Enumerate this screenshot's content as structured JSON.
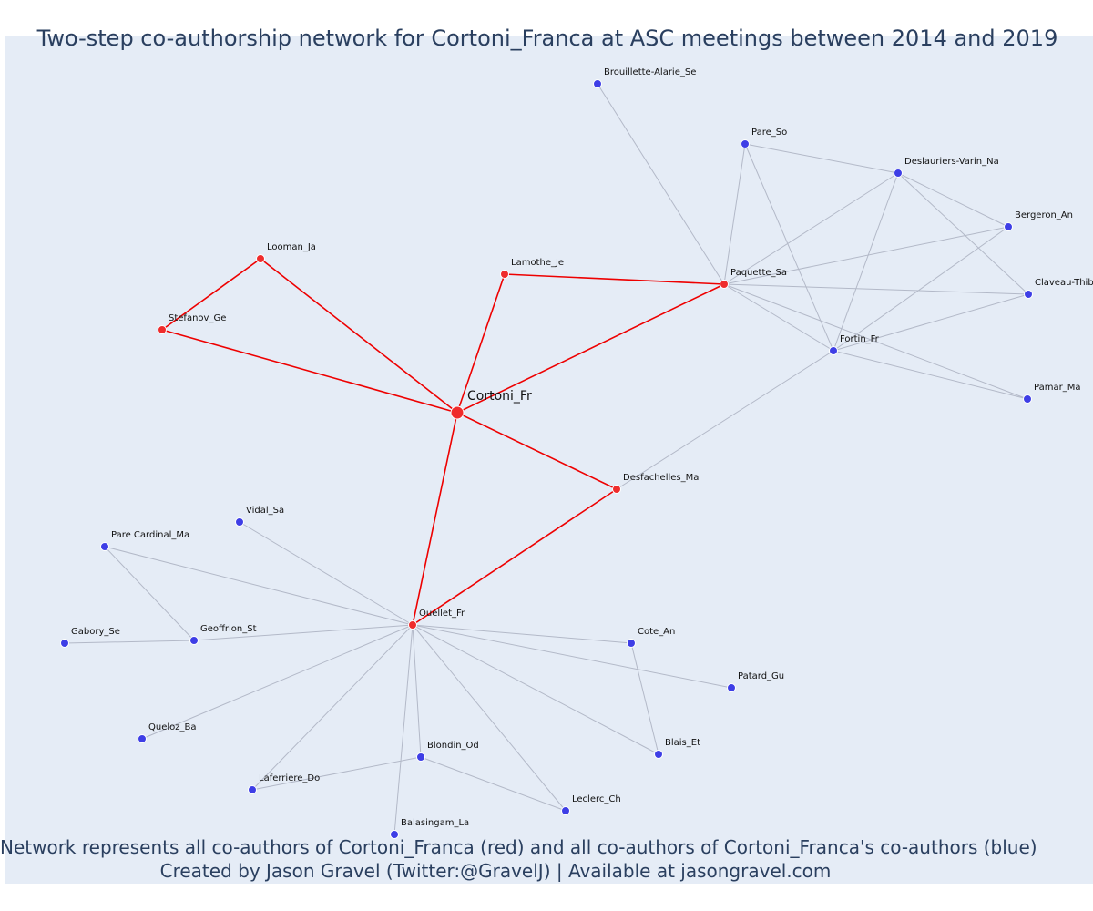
{
  "title": "Two-step co-authorship network for Cortoni_Franca at ASC meetings between 2014 and 2019",
  "captions": {
    "line1": "Network represents all co-authors of Cortoni_Franca (red) and all co-authors of Cortoni_Franca's co-authors (blue)",
    "line2": "Created by Jason Gravel (Twitter:@GravelJ) | Available at jasongravel.com"
  },
  "colors": {
    "background": "#e5ecf6",
    "red_node": "#ef2c2c",
    "blue_node": "#3e3ee6",
    "red_edge": "#ee0000",
    "grey_edge": "#b3b9c8",
    "text": "#2a3f5f"
  },
  "network": {
    "center": "Cortoni_Fr",
    "nodes": [
      {
        "id": "Cortoni_Fr",
        "group": "center"
      },
      {
        "id": "Looman_Ja",
        "group": "red"
      },
      {
        "id": "Stefanov_Ge",
        "group": "red"
      },
      {
        "id": "Lamothe_Je",
        "group": "red"
      },
      {
        "id": "Paquette_Sa",
        "group": "red"
      },
      {
        "id": "Desfachelles_Ma",
        "group": "red"
      },
      {
        "id": "Ouellet_Fr",
        "group": "red"
      },
      {
        "id": "Brouillette-Alarie_Se",
        "group": "blue"
      },
      {
        "id": "Pare_So",
        "group": "blue"
      },
      {
        "id": "Deslauriers-Varin_Na",
        "group": "blue"
      },
      {
        "id": "Bergeron_An",
        "group": "blue"
      },
      {
        "id": "Claveau-Thib",
        "group": "blue"
      },
      {
        "id": "Fortin_Fr",
        "group": "blue"
      },
      {
        "id": "Pamar_Ma",
        "group": "blue"
      },
      {
        "id": "Vidal_Sa",
        "group": "blue"
      },
      {
        "id": "Pare Cardinal_Ma",
        "group": "blue"
      },
      {
        "id": "Geoffrion_St",
        "group": "blue"
      },
      {
        "id": "Gabory_Se",
        "group": "blue"
      },
      {
        "id": "Queloz_Ba",
        "group": "blue"
      },
      {
        "id": "Laferriere_Do",
        "group": "blue"
      },
      {
        "id": "Balasingam_La",
        "group": "blue"
      },
      {
        "id": "Blondin_Od",
        "group": "blue"
      },
      {
        "id": "Leclerc_Ch",
        "group": "blue"
      },
      {
        "id": "Blais_Et",
        "group": "blue"
      },
      {
        "id": "Cote_An",
        "group": "blue"
      },
      {
        "id": "Patard_Gu",
        "group": "blue"
      }
    ],
    "edges": [
      [
        "Cortoni_Fr",
        "Looman_Ja",
        "red"
      ],
      [
        "Cortoni_Fr",
        "Stefanov_Ge",
        "red"
      ],
      [
        "Looman_Ja",
        "Stefanov_Ge",
        "red"
      ],
      [
        "Cortoni_Fr",
        "Lamothe_Je",
        "red"
      ],
      [
        "Lamothe_Je",
        "Paquette_Sa",
        "red"
      ],
      [
        "Cortoni_Fr",
        "Paquette_Sa",
        "red"
      ],
      [
        "Cortoni_Fr",
        "Desfachelles_Ma",
        "red"
      ],
      [
        "Cortoni_Fr",
        "Ouellet_Fr",
        "red"
      ],
      [
        "Desfachelles_Ma",
        "Ouellet_Fr",
        "red"
      ],
      [
        "Paquette_Sa",
        "Brouillette-Alarie_Se",
        "grey"
      ],
      [
        "Paquette_Sa",
        "Pare_So",
        "grey"
      ],
      [
        "Paquette_Sa",
        "Deslauriers-Varin_Na",
        "grey"
      ],
      [
        "Paquette_Sa",
        "Bergeron_An",
        "grey"
      ],
      [
        "Paquette_Sa",
        "Claveau-Thib",
        "grey"
      ],
      [
        "Paquette_Sa",
        "Fortin_Fr",
        "grey"
      ],
      [
        "Paquette_Sa",
        "Pamar_Ma",
        "grey"
      ],
      [
        "Pare_So",
        "Deslauriers-Varin_Na",
        "grey"
      ],
      [
        "Pare_So",
        "Fortin_Fr",
        "grey"
      ],
      [
        "Deslauriers-Varin_Na",
        "Bergeron_An",
        "grey"
      ],
      [
        "Deslauriers-Varin_Na",
        "Claveau-Thib",
        "grey"
      ],
      [
        "Deslauriers-Varin_Na",
        "Fortin_Fr",
        "grey"
      ],
      [
        "Bergeron_An",
        "Fortin_Fr",
        "grey"
      ],
      [
        "Claveau-Thib",
        "Fortin_Fr",
        "grey"
      ],
      [
        "Fortin_Fr",
        "Pamar_Ma",
        "grey"
      ],
      [
        "Fortin_Fr",
        "Desfachelles_Ma",
        "grey"
      ],
      [
        "Ouellet_Fr",
        "Vidal_Sa",
        "grey"
      ],
      [
        "Ouellet_Fr",
        "Pare Cardinal_Ma",
        "grey"
      ],
      [
        "Ouellet_Fr",
        "Geoffrion_St",
        "grey"
      ],
      [
        "Ouellet_Fr",
        "Queloz_Ba",
        "grey"
      ],
      [
        "Ouellet_Fr",
        "Laferriere_Do",
        "grey"
      ],
      [
        "Ouellet_Fr",
        "Balasingam_La",
        "grey"
      ],
      [
        "Ouellet_Fr",
        "Blondin_Od",
        "grey"
      ],
      [
        "Ouellet_Fr",
        "Leclerc_Ch",
        "grey"
      ],
      [
        "Ouellet_Fr",
        "Blais_Et",
        "grey"
      ],
      [
        "Ouellet_Fr",
        "Cote_An",
        "grey"
      ],
      [
        "Ouellet_Fr",
        "Patard_Gu",
        "grey"
      ],
      [
        "Pare Cardinal_Ma",
        "Geoffrion_St",
        "grey"
      ],
      [
        "Geoffrion_St",
        "Gabory_Se",
        "grey"
      ],
      [
        "Blondin_Od",
        "Laferriere_Do",
        "grey"
      ],
      [
        "Blondin_Od",
        "Leclerc_Ch",
        "grey"
      ],
      [
        "Cote_An",
        "Blais_Et",
        "grey"
      ]
    ]
  }
}
